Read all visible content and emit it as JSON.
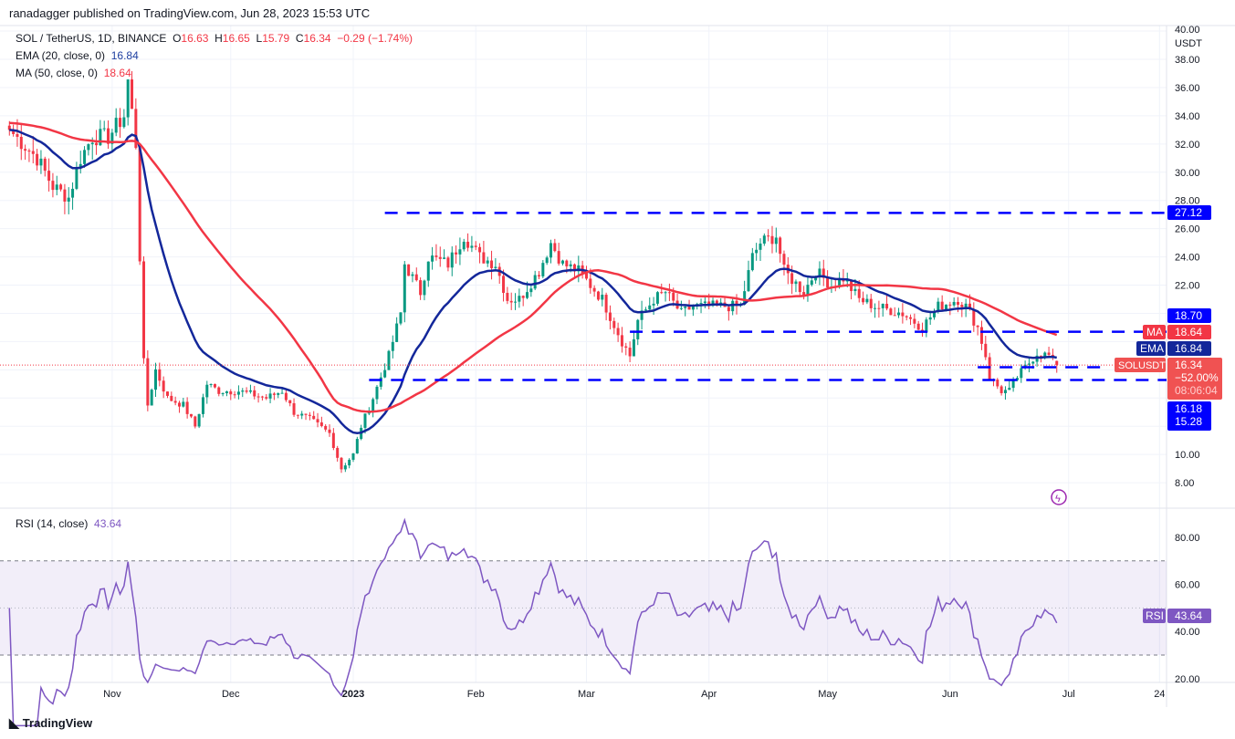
{
  "header": {
    "published": "ranadagger published on TradingView.com, Jun 28, 2023 15:53 UTC"
  },
  "legend": {
    "symbol": "SOL / TetherUS, 1D, BINANCE",
    "o_label": "O",
    "o": "16.63",
    "h_label": "H",
    "h": "16.65",
    "l_label": "L",
    "l": "15.79",
    "c_label": "C",
    "c": "16.34",
    "change": "−0.29 (−1.74%)",
    "ema_label": "EMA (20, close, 0)",
    "ema_value": "16.84",
    "ma_label": "MA (50, close, 0)",
    "ma_value": "18.64",
    "rsi_label": "RSI (14, close)",
    "rsi_value": "43.64"
  },
  "footer": {
    "brand": "TradingView"
  },
  "chart_data": {
    "type": "candlestick",
    "title": "SOL / TetherUS, 1D, BINANCE",
    "currency": "USDT",
    "ylim": [
      6.5,
      40
    ],
    "price_ticks": [
      "40.00",
      "38.00",
      "36.00",
      "34.00",
      "32.00",
      "30.00",
      "28.00",
      "26.00",
      "24.00",
      "22.00",
      "10.00",
      "8.00"
    ],
    "time_ticks": [
      {
        "label": "Nov",
        "day": -61
      },
      {
        "label": "Dec",
        "day": -31
      },
      {
        "label": "2023",
        "day": 0,
        "bold": true
      },
      {
        "label": "Feb",
        "day": 31
      },
      {
        "label": "Mar",
        "day": 59
      },
      {
        "label": "Apr",
        "day": 90
      },
      {
        "label": "May",
        "day": 120
      },
      {
        "label": "Jun",
        "day": 151
      },
      {
        "label": "Jul",
        "day": 181
      },
      {
        "label": "24",
        "day": 204
      }
    ],
    "close_keypoints_day_vs_price": [
      [
        -87,
        33
      ],
      [
        -80,
        31
      ],
      [
        -76,
        29
      ],
      [
        -72,
        28.2
      ],
      [
        -69,
        31
      ],
      [
        -66,
        32.5
      ],
      [
        -62,
        32.5
      ],
      [
        -58,
        34
      ],
      [
        -57,
        36.5
      ],
      [
        -55,
        32
      ],
      [
        -54,
        24
      ],
      [
        -53,
        16.5
      ],
      [
        -52,
        13.5
      ],
      [
        -50,
        16
      ],
      [
        -47,
        14
      ],
      [
        -43,
        13.5
      ],
      [
        -40,
        12
      ],
      [
        -37,
        15
      ],
      [
        -34,
        14.5
      ],
      [
        -29,
        14.5
      ],
      [
        -22,
        14
      ],
      [
        -18,
        14.5
      ],
      [
        -15,
        13
      ],
      [
        -11,
        12.5
      ],
      [
        -6,
        11.5
      ],
      [
        -3,
        9
      ],
      [
        0,
        10
      ],
      [
        2,
        12
      ],
      [
        5,
        14
      ],
      [
        9,
        17
      ],
      [
        12,
        20
      ],
      [
        13,
        23.5
      ],
      [
        17,
        21.5
      ],
      [
        19,
        24
      ],
      [
        24,
        23.5
      ],
      [
        28,
        25.5
      ],
      [
        32,
        24
      ],
      [
        36,
        23.5
      ],
      [
        39,
        21
      ],
      [
        42,
        21
      ],
      [
        47,
        23
      ],
      [
        50,
        25
      ],
      [
        53,
        23.5
      ],
      [
        57,
        23
      ],
      [
        63,
        21
      ],
      [
        68,
        18
      ],
      [
        70,
        17
      ],
      [
        72,
        19.5
      ],
      [
        76,
        21
      ],
      [
        79,
        21.5
      ],
      [
        83,
        20
      ],
      [
        86,
        20.5
      ],
      [
        93,
        20.5
      ],
      [
        98,
        20.5
      ],
      [
        101,
        24
      ],
      [
        103,
        25
      ],
      [
        107,
        25.5
      ],
      [
        109,
        23
      ],
      [
        114,
        21.5
      ],
      [
        117,
        23
      ],
      [
        121,
        22
      ],
      [
        124,
        22.5
      ],
      [
        128,
        21
      ],
      [
        132,
        20.5
      ],
      [
        139,
        20
      ],
      [
        144,
        19
      ],
      [
        148,
        20.5
      ],
      [
        153,
        21
      ],
      [
        155,
        20.5
      ],
      [
        158,
        19
      ],
      [
        160,
        17
      ],
      [
        161,
        15.5
      ],
      [
        164,
        14.5
      ],
      [
        166,
        14.5
      ],
      [
        168,
        15.5
      ],
      [
        171,
        16.5
      ],
      [
        173,
        17.2
      ],
      [
        176,
        17
      ],
      [
        178,
        16.34
      ]
    ],
    "levels": [
      {
        "value": 27.12,
        "label": "27.12",
        "from_day": 8
      },
      {
        "value": 18.7,
        "label": "18.70",
        "from_day": 70
      },
      {
        "value": 16.18,
        "label": "16.18",
        "from_day": 158,
        "to_day": 191
      },
      {
        "value": 15.28,
        "label": "15.28",
        "from_day": 4
      }
    ],
    "series": [
      {
        "name": "EMA",
        "period": 20,
        "color": "#13279a",
        "label": "EMA",
        "value": "16.84"
      },
      {
        "name": "MA",
        "period": 50,
        "color": "#f23645",
        "label": "MA",
        "value": "18.64"
      }
    ],
    "last": {
      "label": "SOLUSDT",
      "price": "16.34",
      "change": "−52.00%",
      "countdown": "08:06:04"
    },
    "rsi": {
      "period": 14,
      "ticks": [
        "80.00",
        "60.00",
        "40.00",
        "20.00"
      ],
      "band": [
        30,
        70
      ],
      "label": "RSI",
      "value": "43.64"
    }
  }
}
